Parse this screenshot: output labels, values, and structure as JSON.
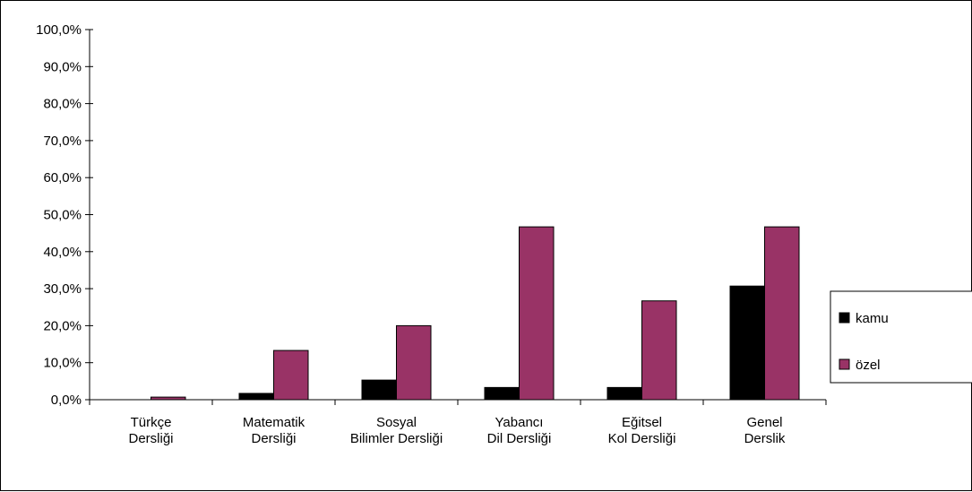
{
  "chart_data": {
    "type": "bar",
    "categories": [
      [
        "Türkçe",
        "Dersliği"
      ],
      [
        "Matematik",
        "Dersliği"
      ],
      [
        "Sosyal",
        "Bilimler Dersliği"
      ],
      [
        "Yabancı",
        "Dil Dersliği"
      ],
      [
        "Eğitsel",
        "Kol Dersliği"
      ],
      [
        "Genel",
        "Derslik"
      ]
    ],
    "series": [
      {
        "name": "kamu",
        "color": "#000000",
        "values": [
          0.0,
          1.7,
          5.3,
          3.3,
          3.3,
          30.7
        ]
      },
      {
        "name": "özel",
        "color": "#993366",
        "values": [
          0.7,
          13.3,
          20.0,
          46.7,
          26.7,
          46.7
        ]
      }
    ],
    "ylim": [
      0,
      100
    ],
    "yticks": [
      0,
      10,
      20,
      30,
      40,
      50,
      60,
      70,
      80,
      90,
      100
    ],
    "ytick_labels": [
      "0,0%",
      "10,0%",
      "20,0%",
      "30,0%",
      "40,0%",
      "50,0%",
      "60,0%",
      "70,0%",
      "80,0%",
      "90,0%",
      "100,0%"
    ],
    "title": "",
    "xlabel": "",
    "ylabel": "",
    "grid": false,
    "legend_position": "right"
  }
}
